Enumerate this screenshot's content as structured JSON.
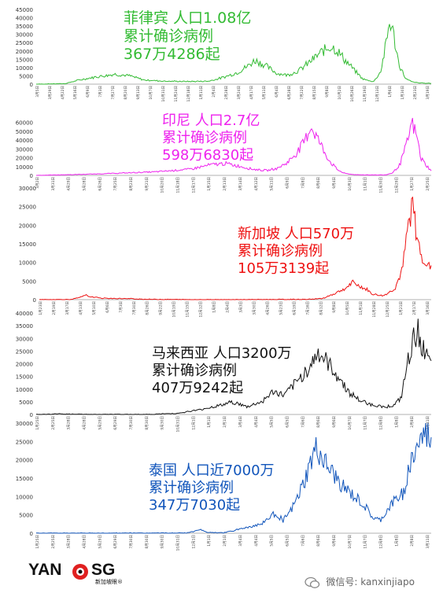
{
  "watermark": {
    "label": "微信号: kanxinjiapo",
    "icon": "wechat-icon"
  },
  "logo": {
    "left": "YAN",
    "right": "SG",
    "subtitle": "新加坡眼®",
    "icon": "eye-logo-icon"
  },
  "chart_data": [
    {
      "type": "line",
      "country": "Philippines",
      "color": "#33bb33",
      "yticks": [
        0,
        5000,
        10000,
        15000,
        20000,
        25000,
        30000,
        35000,
        40000,
        45000
      ],
      "ylim": [
        0,
        45000
      ],
      "x_date_labels": [
        "3月5日",
        "3月29日",
        "4月22日",
        "5月16日",
        "6月9日",
        "7月3日",
        "7月27日",
        "8月20日",
        "9月13日",
        "10月7日",
        "10月31日",
        "11月24日",
        "12月18日",
        "1月11日",
        "2月4日",
        "2月28日",
        "3月24日",
        "4月17日",
        "5月11日",
        "6月4日",
        "6月28日",
        "7月22日",
        "8月15日",
        "9月8日",
        "10月2日",
        "10月26日",
        "11月19日",
        "12月13日",
        "1月6日",
        "1月30日",
        "2月23日",
        "3月19日"
      ],
      "keypoints": [
        [
          0,
          0
        ],
        [
          0.08,
          300
        ],
        [
          0.12,
          2500
        ],
        [
          0.17,
          4500
        ],
        [
          0.22,
          6000
        ],
        [
          0.26,
          5000
        ],
        [
          0.3,
          2500
        ],
        [
          0.36,
          1800
        ],
        [
          0.42,
          1600
        ],
        [
          0.48,
          1800
        ],
        [
          0.52,
          4000
        ],
        [
          0.56,
          7000
        ],
        [
          0.59,
          11000
        ],
        [
          0.61,
          14500
        ],
        [
          0.64,
          11000
        ],
        [
          0.67,
          6500
        ],
        [
          0.7,
          5500
        ],
        [
          0.73,
          8000
        ],
        [
          0.76,
          13000
        ],
        [
          0.79,
          18500
        ],
        [
          0.82,
          23000
        ],
        [
          0.835,
          21000
        ],
        [
          0.86,
          14500
        ],
        [
          0.89,
          7500
        ],
        [
          0.91,
          3000
        ],
        [
          0.94,
          1500
        ],
        [
          0.96,
          8000
        ],
        [
          0.975,
          25000
        ],
        [
          0.985,
          38500
        ],
        [
          0.995,
          30000
        ],
        [
          1.01,
          12000
        ],
        [
          1.03,
          3000
        ],
        [
          1.05,
          1200
        ],
        [
          1.07,
          700
        ],
        [
          1.1,
          500
        ]
      ],
      "text_lines": [
        "菲律宾 人口1.08亿",
        "累计确诊病例",
        "367万4286起"
      ]
    },
    {
      "type": "line",
      "country": "Indonesia",
      "color": "#ee22ee",
      "yticks": [
        0,
        10000,
        20000,
        30000,
        40000,
        50000,
        60000
      ],
      "ylim": [
        0,
        65000
      ],
      "x_date_labels": [
        "3月2日",
        "3月31日",
        "4月29日",
        "5月28日",
        "6月26日",
        "7月25日",
        "8月23日",
        "9月21日",
        "10月20日",
        "11月18日",
        "12月17日",
        "1月15日",
        "2月13日",
        "3月14日",
        "4月12日",
        "5月11日",
        "6月9日",
        "7月8日",
        "8月6日",
        "9月4日",
        "10月3日",
        "11月1日",
        "11月30日",
        "12月29日",
        "1月27日",
        "2月25日"
      ],
      "keypoints": [
        [
          0,
          0
        ],
        [
          0.06,
          500
        ],
        [
          0.14,
          1200
        ],
        [
          0.24,
          2500
        ],
        [
          0.34,
          4000
        ],
        [
          0.44,
          7000
        ],
        [
          0.5,
          12000
        ],
        [
          0.54,
          13500
        ],
        [
          0.58,
          10500
        ],
        [
          0.62,
          7000
        ],
        [
          0.66,
          5500
        ],
        [
          0.69,
          8000
        ],
        [
          0.72,
          15000
        ],
        [
          0.75,
          28000
        ],
        [
          0.77,
          40000
        ],
        [
          0.785,
          56000
        ],
        [
          0.8,
          46000
        ],
        [
          0.82,
          30000
        ],
        [
          0.84,
          16000
        ],
        [
          0.86,
          7000
        ],
        [
          0.88,
          2500
        ],
        [
          0.91,
          800
        ],
        [
          0.94,
          600
        ],
        [
          0.97,
          400
        ],
        [
          1.0,
          600
        ],
        [
          1.02,
          3000
        ],
        [
          1.04,
          12000
        ],
        [
          1.06,
          35000
        ],
        [
          1.075,
          60000
        ],
        [
          1.09,
          42000
        ],
        [
          1.1,
          20000
        ],
        [
          1.115,
          12000
        ],
        [
          1.13,
          5000
        ]
      ],
      "text_lines": [
        "印尼 人口2.7亿",
        "累计确诊病例",
        "598万6830起"
      ]
    },
    {
      "type": "line",
      "country": "Singapore",
      "color": "#ee1111",
      "yticks": [
        0,
        5000,
        10000,
        15000,
        20000,
        25000,
        30000
      ],
      "ylim": [
        0,
        30000
      ],
      "x_date_labels": [
        "1月23日",
        "2月19日",
        "3月17日",
        "4月13日",
        "5月10日",
        "6月6日",
        "7月3日",
        "7月30日",
        "8月26日",
        "9月22日",
        "10月19日",
        "11月15日",
        "12月12日",
        "1月8日",
        "2月4日",
        "3月3日",
        "3月30日",
        "4月26日",
        "5月23日",
        "6月19日",
        "7月16日",
        "8月12日",
        "9月8日",
        "10月5日",
        "11月1日",
        "11月28日",
        "12月25日",
        "1月21日",
        "2月17日",
        "3月16日"
      ],
      "keypoints": [
        [
          0,
          0
        ],
        [
          0.08,
          50
        ],
        [
          0.1,
          400
        ],
        [
          0.12,
          1200
        ],
        [
          0.14,
          700
        ],
        [
          0.16,
          400
        ],
        [
          0.2,
          300
        ],
        [
          0.24,
          250
        ],
        [
          0.28,
          100
        ],
        [
          0.4,
          10
        ],
        [
          0.55,
          20
        ],
        [
          0.62,
          50
        ],
        [
          0.7,
          80
        ],
        [
          0.74,
          300
        ],
        [
          0.77,
          1500
        ],
        [
          0.8,
          3000
        ],
        [
          0.82,
          4500
        ],
        [
          0.84,
          3500
        ],
        [
          0.86,
          2500
        ],
        [
          0.87,
          1500
        ],
        [
          0.9,
          1000
        ],
        [
          0.93,
          3000
        ],
        [
          0.95,
          8000
        ],
        [
          0.965,
          20000
        ],
        [
          0.975,
          26000
        ],
        [
          0.99,
          15000
        ],
        [
          1.01,
          10000
        ],
        [
          1.025,
          8000
        ]
      ],
      "text_lines": [
        "新加坡 人口570万",
        "累计确诊病例",
        "105万3139起"
      ]
    },
    {
      "type": "line",
      "country": "Malaysia",
      "color": "#111111",
      "yticks": [
        0,
        5000,
        10000,
        15000,
        20000,
        25000,
        30000,
        35000,
        40000
      ],
      "ylim": [
        0,
        40000
      ],
      "x_date_labels": [
        "1月25日",
        "2月25日",
        "3月28日",
        "4月28日",
        "5月29日",
        "6月29日",
        "7月30日",
        "8月30日",
        "9月30日",
        "10月31日",
        "12月1日",
        "1月1日",
        "2月1日",
        "3月4日",
        "4月4日",
        "5月5日",
        "6月5日",
        "7月6日",
        "8月6日",
        "9月6日",
        "10月7日",
        "11月7日",
        "12月8日",
        "1月8日",
        "2月8日",
        "3月11日"
      ],
      "keypoints": [
        [
          0,
          0
        ],
        [
          0.04,
          100
        ],
        [
          0.06,
          250
        ],
        [
          0.1,
          100
        ],
        [
          0.14,
          20
        ],
        [
          0.3,
          20
        ],
        [
          0.38,
          500
        ],
        [
          0.44,
          2000
        ],
        [
          0.5,
          4000
        ],
        [
          0.52,
          5000
        ],
        [
          0.56,
          3000
        ],
        [
          0.6,
          5000
        ],
        [
          0.63,
          9000
        ],
        [
          0.66,
          7500
        ],
        [
          0.7,
          14000
        ],
        [
          0.73,
          19500
        ],
        [
          0.75,
          24500
        ],
        [
          0.77,
          21000
        ],
        [
          0.8,
          15500
        ],
        [
          0.83,
          9000
        ],
        [
          0.86,
          5500
        ],
        [
          0.89,
          4000
        ],
        [
          0.92,
          3000
        ],
        [
          0.95,
          3500
        ],
        [
          0.97,
          6500
        ],
        [
          0.99,
          22000
        ],
        [
          1.005,
          30000
        ],
        [
          1.015,
          33500
        ],
        [
          1.03,
          25000
        ],
        [
          1.04,
          22000
        ],
        [
          1.05,
          19000
        ]
      ],
      "text_lines": [
        "马来西亚 人口3200万",
        "累计确诊病例",
        "407万9242起"
      ]
    },
    {
      "type": "line",
      "country": "Thailand",
      "color": "#1155bb",
      "yticks": [
        0,
        5000,
        10000,
        15000,
        20000,
        25000,
        30000
      ],
      "ylim": [
        0,
        30000
      ],
      "x_date_labels": [
        "1月25日",
        "2月25日",
        "3月28日",
        "4月28日",
        "5月29日",
        "6月29日",
        "7月30日",
        "8月30日",
        "9月30日",
        "10月31日",
        "12月1日",
        "1月1日",
        "2月1日",
        "3月4日",
        "4月4日",
        "5月5日",
        "6月5日",
        "7月6日",
        "8月6日",
        "9月6日",
        "10月7日",
        "11月7日",
        "12月8日",
        "1月8日",
        "2月8日",
        "3月11日"
      ],
      "keypoints": [
        [
          0,
          0
        ],
        [
          0.05,
          30
        ],
        [
          0.1,
          20
        ],
        [
          0.4,
          50
        ],
        [
          0.42,
          500
        ],
        [
          0.44,
          900
        ],
        [
          0.46,
          200
        ],
        [
          0.5,
          100
        ],
        [
          0.56,
          1500
        ],
        [
          0.6,
          2500
        ],
        [
          0.62,
          4000
        ],
        [
          0.64,
          5500
        ],
        [
          0.66,
          3500
        ],
        [
          0.68,
          6000
        ],
        [
          0.7,
          10000
        ],
        [
          0.72,
          15000
        ],
        [
          0.74,
          21000
        ],
        [
          0.75,
          23000
        ],
        [
          0.77,
          19000
        ],
        [
          0.8,
          15000
        ],
        [
          0.83,
          11500
        ],
        [
          0.86,
          9000
        ],
        [
          0.88,
          7000
        ],
        [
          0.9,
          4000
        ],
        [
          0.92,
          3500
        ],
        [
          0.95,
          8000
        ],
        [
          0.98,
          11000
        ],
        [
          1.0,
          19000
        ],
        [
          1.02,
          24000
        ],
        [
          1.04,
          27000
        ],
        [
          1.055,
          26000
        ]
      ],
      "text_lines": [
        "泰国 人口近7000万",
        "累计确诊病例",
        "347万7030起"
      ]
    }
  ]
}
